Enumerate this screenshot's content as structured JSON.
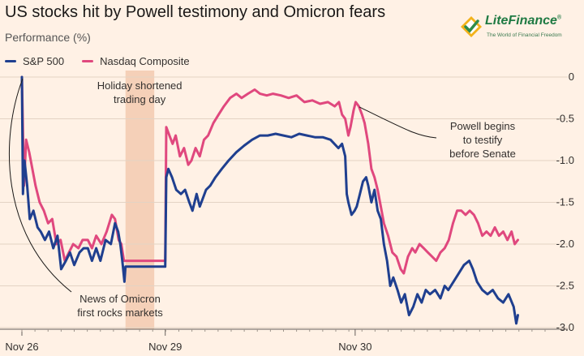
{
  "title": "US stocks hit by Powell testimony and Omicron fears",
  "subtitle": "Performance (%)",
  "logo": {
    "brand": "LiteFinance",
    "registered": "®",
    "tagline": "The World of Financial Freedom"
  },
  "colors": {
    "sp500": "#1f3f8f",
    "nasdaq": "#e0487e",
    "holiday_band": "#f5d0b8",
    "background": "#fff1e5"
  },
  "chart_data": {
    "type": "line",
    "ylabel": "Performance (%)",
    "ylim": [
      -3.0,
      0
    ],
    "yticks": [
      0,
      -0.5,
      -1.0,
      -1.5,
      -2.0,
      -2.5,
      -3.0
    ],
    "ytick_labels": [
      "0",
      "-0.5",
      "-1.0",
      "-1.5",
      "-2.0",
      "-2.5",
      "-3.0"
    ],
    "xlim": [
      0,
      1000
    ],
    "xtick_labels": [
      {
        "label": "Nov 26",
        "x": 0
      },
      {
        "label": "Nov 29",
        "x": 274
      },
      {
        "label": "Nov 30",
        "x": 637
      }
    ],
    "holiday_band": [
      198,
      253
    ],
    "grid": true,
    "legend_position": "top-left",
    "series": [
      {
        "name": "S&P 500",
        "points": [
          [
            0,
            0
          ],
          [
            2,
            -1.4
          ],
          [
            5,
            -1.0
          ],
          [
            10,
            -1.3
          ],
          [
            15,
            -1.7
          ],
          [
            22,
            -1.6
          ],
          [
            30,
            -1.8
          ],
          [
            36,
            -1.85
          ],
          [
            44,
            -1.95
          ],
          [
            52,
            -1.85
          ],
          [
            60,
            -2.05
          ],
          [
            68,
            -1.9
          ],
          [
            75,
            -2.3
          ],
          [
            84,
            -2.2
          ],
          [
            92,
            -2.1
          ],
          [
            100,
            -2.25
          ],
          [
            110,
            -2.1
          ],
          [
            118,
            -2.05
          ],
          [
            126,
            -2.05
          ],
          [
            134,
            -2.2
          ],
          [
            142,
            -2.05
          ],
          [
            150,
            -2.2
          ],
          [
            160,
            -1.95
          ],
          [
            170,
            -2.0
          ],
          [
            178,
            -1.75
          ],
          [
            184,
            -1.85
          ],
          [
            188,
            -2.0
          ],
          [
            192,
            -2.2
          ],
          [
            196,
            -2.45
          ],
          [
            198,
            -2.27
          ],
          [
            274,
            -2.27
          ],
          [
            276,
            -1.2
          ],
          [
            280,
            -1.1
          ],
          [
            287,
            -1.2
          ],
          [
            295,
            -1.35
          ],
          [
            304,
            -1.4
          ],
          [
            312,
            -1.35
          ],
          [
            320,
            -1.5
          ],
          [
            326,
            -1.6
          ],
          [
            334,
            -1.4
          ],
          [
            340,
            -1.55
          ],
          [
            346,
            -1.45
          ],
          [
            352,
            -1.35
          ],
          [
            360,
            -1.3
          ],
          [
            370,
            -1.2
          ],
          [
            382,
            -1.1
          ],
          [
            395,
            -1.0
          ],
          [
            410,
            -0.9
          ],
          [
            425,
            -0.82
          ],
          [
            440,
            -0.75
          ],
          [
            455,
            -0.7
          ],
          [
            470,
            -0.7
          ],
          [
            485,
            -0.68
          ],
          [
            500,
            -0.7
          ],
          [
            515,
            -0.72
          ],
          [
            530,
            -0.68
          ],
          [
            545,
            -0.7
          ],
          [
            560,
            -0.72
          ],
          [
            575,
            -0.72
          ],
          [
            590,
            -0.75
          ],
          [
            605,
            -0.85
          ],
          [
            612,
            -0.8
          ],
          [
            618,
            -0.95
          ],
          [
            621,
            -1.4
          ],
          [
            624,
            -1.5
          ],
          [
            630,
            -1.65
          ],
          [
            636,
            -1.6
          ],
          [
            640,
            -1.55
          ],
          [
            646,
            -1.4
          ],
          [
            652,
            -1.25
          ],
          [
            658,
            -1.2
          ],
          [
            662,
            -1.3
          ],
          [
            668,
            -1.5
          ],
          [
            674,
            -1.35
          ],
          [
            680,
            -1.6
          ],
          [
            686,
            -1.7
          ],
          [
            692,
            -2.0
          ],
          [
            698,
            -2.2
          ],
          [
            704,
            -2.5
          ],
          [
            710,
            -2.4
          ],
          [
            718,
            -2.55
          ],
          [
            725,
            -2.7
          ],
          [
            732,
            -2.6
          ],
          [
            740,
            -2.85
          ],
          [
            748,
            -2.75
          ],
          [
            756,
            -2.6
          ],
          [
            764,
            -2.7
          ],
          [
            772,
            -2.55
          ],
          [
            780,
            -2.6
          ],
          [
            790,
            -2.55
          ],
          [
            800,
            -2.65
          ],
          [
            808,
            -2.5
          ],
          [
            815,
            -2.55
          ],
          [
            825,
            -2.45
          ],
          [
            835,
            -2.35
          ],
          [
            845,
            -2.25
          ],
          [
            855,
            -2.2
          ],
          [
            862,
            -2.3
          ],
          [
            870,
            -2.45
          ],
          [
            880,
            -2.55
          ],
          [
            890,
            -2.6
          ],
          [
            900,
            -2.55
          ],
          [
            910,
            -2.65
          ],
          [
            920,
            -2.7
          ],
          [
            930,
            -2.6
          ],
          [
            940,
            -2.75
          ],
          [
            945,
            -2.95
          ],
          [
            948,
            -2.85
          ]
        ]
      },
      {
        "name": "Nasdaq Composite",
        "points": [
          [
            0,
            0
          ],
          [
            4,
            -1.3
          ],
          [
            8,
            -0.75
          ],
          [
            14,
            -0.9
          ],
          [
            20,
            -1.1
          ],
          [
            26,
            -1.3
          ],
          [
            34,
            -1.5
          ],
          [
            42,
            -1.6
          ],
          [
            50,
            -1.75
          ],
          [
            58,
            -1.7
          ],
          [
            66,
            -2.0
          ],
          [
            74,
            -1.95
          ],
          [
            82,
            -2.2
          ],
          [
            90,
            -2.1
          ],
          [
            98,
            -2.0
          ],
          [
            108,
            -2.05
          ],
          [
            116,
            -1.95
          ],
          [
            126,
            -1.95
          ],
          [
            134,
            -2.05
          ],
          [
            142,
            -1.9
          ],
          [
            152,
            -2.0
          ],
          [
            162,
            -1.85
          ],
          [
            172,
            -1.65
          ],
          [
            178,
            -1.7
          ],
          [
            185,
            -1.95
          ],
          [
            190,
            -2.0
          ],
          [
            195,
            -2.2
          ],
          [
            198,
            -2.2
          ],
          [
            274,
            -2.2
          ],
          [
            276,
            -0.6
          ],
          [
            282,
            -0.7
          ],
          [
            288,
            -0.8
          ],
          [
            294,
            -0.7
          ],
          [
            302,
            -0.95
          ],
          [
            310,
            -0.85
          ],
          [
            318,
            -1.05
          ],
          [
            324,
            -1.0
          ],
          [
            332,
            -0.85
          ],
          [
            340,
            -0.95
          ],
          [
            348,
            -0.75
          ],
          [
            356,
            -0.7
          ],
          [
            366,
            -0.55
          ],
          [
            376,
            -0.45
          ],
          [
            386,
            -0.35
          ],
          [
            398,
            -0.25
          ],
          [
            410,
            -0.2
          ],
          [
            420,
            -0.25
          ],
          [
            432,
            -0.2
          ],
          [
            445,
            -0.15
          ],
          [
            455,
            -0.2
          ],
          [
            468,
            -0.22
          ],
          [
            480,
            -0.2
          ],
          [
            495,
            -0.22
          ],
          [
            510,
            -0.25
          ],
          [
            525,
            -0.22
          ],
          [
            540,
            -0.3
          ],
          [
            555,
            -0.28
          ],
          [
            570,
            -0.32
          ],
          [
            585,
            -0.3
          ],
          [
            598,
            -0.35
          ],
          [
            606,
            -0.3
          ],
          [
            612,
            -0.45
          ],
          [
            618,
            -0.5
          ],
          [
            624,
            -0.7
          ],
          [
            628,
            -0.6
          ],
          [
            634,
            -0.4
          ],
          [
            638,
            -0.3
          ],
          [
            644,
            -0.35
          ],
          [
            650,
            -0.45
          ],
          [
            655,
            -0.55
          ],
          [
            662,
            -0.8
          ],
          [
            668,
            -1.1
          ],
          [
            674,
            -1.2
          ],
          [
            680,
            -1.35
          ],
          [
            686,
            -1.55
          ],
          [
            692,
            -1.75
          ],
          [
            700,
            -1.9
          ],
          [
            708,
            -2.1
          ],
          [
            716,
            -2.15
          ],
          [
            724,
            -2.3
          ],
          [
            730,
            -2.35
          ],
          [
            738,
            -2.15
          ],
          [
            746,
            -2.05
          ],
          [
            752,
            -2.1
          ],
          [
            760,
            -2.0
          ],
          [
            768,
            -2.05
          ],
          [
            776,
            -2.1
          ],
          [
            784,
            -2.15
          ],
          [
            792,
            -2.2
          ],
          [
            800,
            -2.1
          ],
          [
            808,
            -2.05
          ],
          [
            816,
            -1.95
          ],
          [
            824,
            -1.75
          ],
          [
            832,
            -1.6
          ],
          [
            840,
            -1.6
          ],
          [
            848,
            -1.65
          ],
          [
            856,
            -1.6
          ],
          [
            864,
            -1.65
          ],
          [
            872,
            -1.75
          ],
          [
            880,
            -1.9
          ],
          [
            888,
            -1.85
          ],
          [
            896,
            -1.9
          ],
          [
            904,
            -1.8
          ],
          [
            912,
            -1.9
          ],
          [
            920,
            -1.85
          ],
          [
            928,
            -1.95
          ],
          [
            936,
            -1.85
          ],
          [
            942,
            -2.0
          ],
          [
            948,
            -1.95
          ]
        ]
      }
    ],
    "annotations": [
      {
        "id": "holiday",
        "lines": [
          "Holiday shortened",
          "trading day"
        ],
        "anchor_x": 225,
        "anchor_y": null
      },
      {
        "id": "omicron",
        "lines": [
          "News of Omicron",
          "first rocks markets"
        ],
        "anchor_x": 0,
        "anchor_y": 0
      },
      {
        "id": "powell",
        "lines": [
          "Powell begins",
          "to testify",
          "before Senate"
        ],
        "anchor_x": 645,
        "anchor_y": -0.3
      }
    ]
  }
}
